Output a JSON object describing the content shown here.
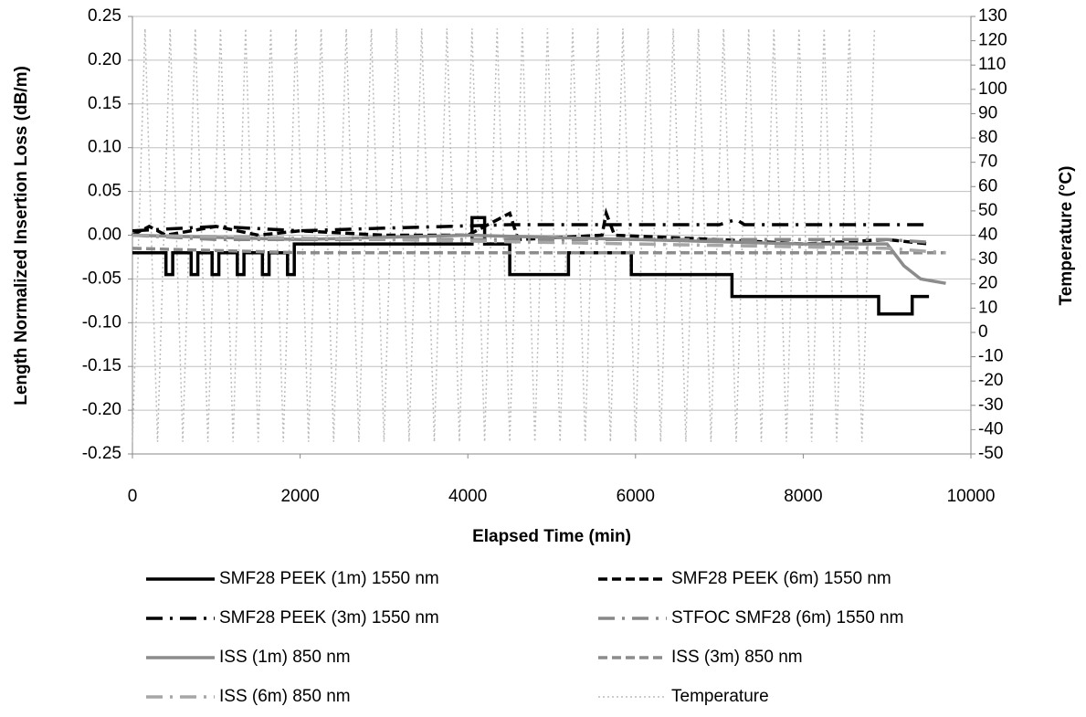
{
  "chart_data": {
    "type": "line",
    "xlabel": "Elapsed Time (min)",
    "ylabel": "Length Normalized Insertion Loss (dB/m)",
    "y2label": "Temperature (°C)",
    "xlim": [
      0,
      10000
    ],
    "xticks": [
      0,
      2000,
      4000,
      6000,
      8000,
      10000
    ],
    "ylim": [
      -0.25,
      0.25
    ],
    "yticks": [
      {
        "value": -0.25,
        "label": "-0.25"
      },
      {
        "value": -0.2,
        "label": "-0.20"
      },
      {
        "value": -0.15,
        "label": "-0.15"
      },
      {
        "value": -0.1,
        "label": "-0.10"
      },
      {
        "value": -0.05,
        "label": "-0.05"
      },
      {
        "value": 0,
        "label": "0.00"
      },
      {
        "value": 0.05,
        "label": "0.05"
      },
      {
        "value": 0.1,
        "label": "0.10"
      },
      {
        "value": 0.15,
        "label": "0.15"
      },
      {
        "value": 0.2,
        "label": "0.20"
      },
      {
        "value": 0.25,
        "label": "0.25"
      }
    ],
    "y2lim": [
      -50,
      130
    ],
    "y2ticks": [
      -50,
      -40,
      -30,
      -20,
      -10,
      0,
      10,
      20,
      30,
      40,
      50,
      60,
      70,
      80,
      90,
      100,
      110,
      120,
      130
    ],
    "grid": true,
    "legend": "bottom",
    "series": [
      {
        "name": "SMF28 PEEK (1m) 1550 nm",
        "color": "#000000",
        "style": "solid",
        "x": [
          0,
          400,
          400,
          480,
          480,
          700,
          700,
          780,
          780,
          950,
          950,
          1030,
          1030,
          1250,
          1250,
          1330,
          1330,
          1550,
          1550,
          1630,
          1630,
          1850,
          1850,
          1930,
          1930,
          4050,
          4050,
          4200,
          4200,
          4500,
          4500,
          5200,
          5200,
          5950,
          5950,
          7150,
          7150,
          8900,
          8900,
          9300,
          9300,
          9500
        ],
        "values": [
          -0.02,
          -0.02,
          -0.045,
          -0.045,
          -0.02,
          -0.02,
          -0.045,
          -0.045,
          -0.02,
          -0.02,
          -0.045,
          -0.045,
          -0.02,
          -0.02,
          -0.045,
          -0.045,
          -0.02,
          -0.02,
          -0.045,
          -0.045,
          -0.02,
          -0.02,
          -0.045,
          -0.045,
          -0.01,
          -0.01,
          0.02,
          0.02,
          -0.01,
          -0.01,
          -0.045,
          -0.045,
          -0.02,
          -0.02,
          -0.045,
          -0.045,
          -0.07,
          -0.07,
          -0.09,
          -0.09,
          -0.07,
          -0.07
        ]
      },
      {
        "name": "SMF28 PEEK (6m) 1550 nm",
        "color": "#000000",
        "style": "dash",
        "x": [
          0,
          200,
          400,
          1000,
          1500,
          2000,
          3000,
          4000,
          4400,
          4500,
          4600,
          5600,
          5650,
          5750,
          7000,
          8000,
          9000,
          9500
        ],
        "values": [
          0,
          0.01,
          0,
          0.01,
          0,
          0.005,
          0,
          0,
          0.02,
          0.025,
          -0.005,
          0,
          0.025,
          0,
          -0.005,
          -0.01,
          -0.005,
          -0.01
        ]
      },
      {
        "name": "SMF28 PEEK (3m) 1550 nm",
        "color": "#000000",
        "style": "dashdot",
        "x": [
          0,
          1000,
          2000,
          3000,
          4500,
          6000,
          7000,
          7200,
          7300,
          9500
        ],
        "values": [
          0.005,
          0.01,
          0.005,
          0.008,
          0.012,
          0.012,
          0.012,
          0.018,
          0.012,
          0.012
        ]
      },
      {
        "name": "STFOC SMF28 (6m) 1550 nm",
        "color": "#888888",
        "style": "dashdot",
        "x": [
          0,
          1000,
          3000,
          5000,
          7000,
          9000,
          9500
        ],
        "values": [
          0,
          -0.005,
          -0.005,
          -0.005,
          -0.005,
          -0.005,
          -0.008
        ]
      },
      {
        "name": "ISS (1m) 850 nm",
        "color": "#8c8c8c",
        "style": "solid",
        "x": [
          0,
          2000,
          4000,
          6000,
          8000,
          9000,
          9200,
          9400,
          9700
        ],
        "values": [
          0,
          -0.005,
          0,
          -0.005,
          -0.01,
          -0.01,
          -0.035,
          -0.05,
          -0.055
        ]
      },
      {
        "name": "ISS (3m) 850 nm",
        "color": "#8c8c8c",
        "style": "dash",
        "x": [
          0,
          2000,
          4000,
          6000,
          8000,
          9700
        ],
        "values": [
          -0.015,
          -0.02,
          -0.02,
          -0.02,
          -0.02,
          -0.02
        ]
      },
      {
        "name": "ISS (6m) 850 nm",
        "color": "#a6a6a6",
        "style": "dashdot",
        "x": [
          0,
          3000,
          6000,
          9000,
          9700
        ],
        "values": [
          0,
          -0.005,
          -0.01,
          -0.015,
          -0.02
        ]
      },
      {
        "name": "Temperature",
        "color": "#bbbbbb",
        "style": "dot",
        "axis": "y2",
        "x": [
          0,
          150,
          300,
          450,
          600,
          750,
          900,
          1050,
          1200,
          1350,
          1500,
          1650,
          1800,
          1950,
          2100,
          2250,
          2400,
          2550,
          2700,
          2850,
          3000,
          3150,
          3300,
          3450,
          3600,
          3750,
          3900,
          4050,
          4200,
          4350,
          4500,
          4650,
          4800,
          4950,
          5100,
          5250,
          5400,
          5550,
          5700,
          5850,
          6000,
          6150,
          6300,
          6450,
          6600,
          6750,
          6900,
          7050,
          7200,
          7350,
          7500,
          7650,
          7800,
          7950,
          8100,
          8250,
          8400,
          8550,
          8700,
          8850
        ],
        "values": [
          -45,
          125,
          -45,
          125,
          -45,
          125,
          -45,
          125,
          -45,
          125,
          -45,
          125,
          -45,
          125,
          -45,
          125,
          -45,
          125,
          -45,
          125,
          -45,
          125,
          -45,
          125,
          -45,
          125,
          -45,
          125,
          -45,
          125,
          -45,
          125,
          -45,
          125,
          -45,
          125,
          -45,
          125,
          -45,
          125,
          -45,
          125,
          -45,
          125,
          -45,
          125,
          -45,
          125,
          -45,
          125,
          -45,
          125,
          -45,
          125,
          -45,
          125,
          -45,
          125,
          -45,
          125
        ]
      }
    ]
  }
}
